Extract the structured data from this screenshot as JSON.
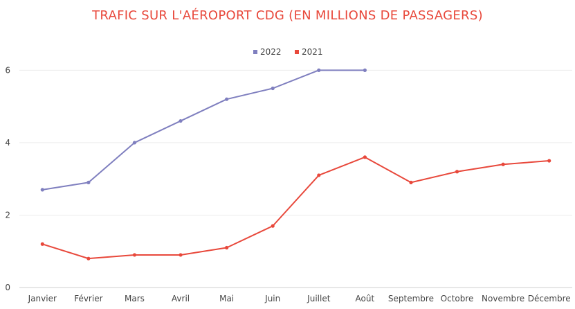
{
  "chart_data": {
    "type": "line",
    "title": "TRAFIC SUR L'AÉROPORT CDG (EN MILLIONS DE PASSAGERS)",
    "categories": [
      "Janvier",
      "Février",
      "Mars",
      "Avril",
      "Mai",
      "Juin",
      "Juillet",
      "Août",
      "Septembre",
      "Octobre",
      "Novembre",
      "Décembre"
    ],
    "series": [
      {
        "name": "2022",
        "color": "#7f7fbf",
        "values": [
          2.7,
          2.9,
          4.0,
          4.6,
          5.2,
          5.5,
          6.0,
          6.0,
          null,
          null,
          null,
          null
        ]
      },
      {
        "name": "2021",
        "color": "#e8483b",
        "values": [
          1.2,
          0.8,
          0.9,
          0.9,
          1.1,
          1.7,
          3.1,
          3.6,
          2.9,
          3.2,
          3.4,
          3.5
        ]
      }
    ],
    "ylim": [
      0,
      6.6
    ],
    "yticks": [
      0,
      2,
      4,
      6
    ],
    "grid": true,
    "legend": "top-center",
    "xlabel": "",
    "ylabel": ""
  }
}
